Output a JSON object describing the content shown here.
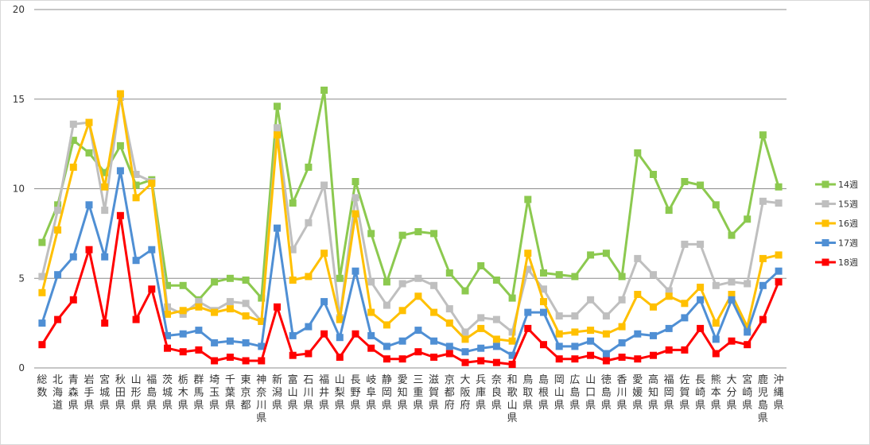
{
  "chart_data": {
    "type": "line",
    "title": "",
    "xlabel": "",
    "ylabel": "",
    "ylim": [
      0,
      20
    ],
    "yticks": [
      0,
      5,
      10,
      15,
      20
    ],
    "grid": true,
    "legend_position": "right",
    "categories": [
      "総数",
      "北海道",
      "青森県",
      "岩手県",
      "宮城県",
      "秋田県",
      "山形県",
      "福島県",
      "茨城県",
      "栃木県",
      "群馬県",
      "埼玉県",
      "千葉県",
      "東京都",
      "神奈川県",
      "新潟県",
      "富山県",
      "石川県",
      "福井県",
      "山梨県",
      "長野県",
      "岐阜県",
      "静岡県",
      "愛知県",
      "三重県",
      "滋賀県",
      "京都府",
      "大阪府",
      "兵庫県",
      "奈良県",
      "和歌山県",
      "鳥取県",
      "島根県",
      "岡山県",
      "広島県",
      "山口県",
      "徳島県",
      "香川県",
      "愛媛県",
      "高知県",
      "福岡県",
      "佐賀県",
      "長崎県",
      "熊本県",
      "大分県",
      "宮崎県",
      "鹿児島県",
      "沖縄県"
    ],
    "series": [
      {
        "name": "14週",
        "color": "#8cc94f",
        "values": [
          7.0,
          9.1,
          12.7,
          12.0,
          10.9,
          12.4,
          10.2,
          10.5,
          4.6,
          4.6,
          3.8,
          4.8,
          5.0,
          4.9,
          3.9,
          14.6,
          9.2,
          11.2,
          15.5,
          5.0,
          10.4,
          7.5,
          4.8,
          7.4,
          7.6,
          7.5,
          5.3,
          4.3,
          5.7,
          4.9,
          3.9,
          9.4,
          5.3,
          5.2,
          5.1,
          6.3,
          6.4,
          5.1,
          12.0,
          10.8,
          8.8,
          10.4,
          10.2,
          9.1,
          7.4,
          8.3,
          13.0,
          10.1
        ]
      },
      {
        "name": "15週",
        "color": "#bfbfbf",
        "values": [
          5.1,
          8.8,
          13.6,
          13.7,
          8.8,
          15.1,
          10.8,
          10.4,
          3.4,
          3.0,
          3.7,
          3.2,
          3.7,
          3.6,
          2.6,
          13.4,
          6.6,
          8.1,
          10.2,
          2.8,
          9.5,
          4.8,
          3.5,
          4.7,
          5.0,
          4.6,
          3.3,
          2.0,
          2.8,
          2.7,
          2.0,
          5.5,
          4.4,
          2.9,
          2.9,
          3.8,
          2.9,
          3.8,
          6.1,
          5.2,
          4.3,
          6.9,
          6.9,
          4.6,
          4.8,
          4.7,
          9.3,
          9.2
        ]
      },
      {
        "name": "16週",
        "color": "#ffc000",
        "values": [
          4.2,
          7.7,
          11.2,
          13.7,
          10.1,
          15.3,
          9.5,
          10.3,
          3.0,
          3.2,
          3.4,
          3.1,
          3.3,
          2.9,
          2.6,
          13.0,
          4.9,
          5.1,
          6.4,
          2.7,
          8.6,
          3.1,
          2.4,
          3.2,
          4.0,
          3.1,
          2.5,
          1.6,
          2.2,
          1.6,
          1.5,
          6.4,
          3.7,
          1.9,
          2.0,
          2.1,
          1.9,
          2.3,
          4.1,
          3.4,
          4.0,
          3.6,
          4.5,
          2.5,
          4.1,
          2.3,
          6.1,
          6.3
        ]
      },
      {
        "name": "17週",
        "color": "#4f8fd4",
        "values": [
          2.5,
          5.2,
          6.2,
          9.1,
          6.2,
          11.0,
          6.0,
          6.6,
          1.8,
          1.9,
          2.1,
          1.4,
          1.5,
          1.4,
          1.2,
          7.8,
          1.8,
          2.3,
          3.7,
          1.7,
          5.4,
          1.8,
          1.2,
          1.5,
          2.1,
          1.5,
          1.2,
          0.9,
          1.1,
          1.2,
          0.7,
          3.1,
          3.1,
          1.2,
          1.2,
          1.5,
          0.8,
          1.4,
          1.9,
          1.8,
          2.2,
          2.8,
          3.8,
          1.6,
          3.8,
          2.0,
          4.6,
          5.4
        ]
      },
      {
        "name": "18週",
        "color": "#ff0000",
        "values": [
          1.3,
          2.7,
          3.8,
          6.6,
          2.5,
          8.5,
          2.7,
          4.4,
          1.1,
          0.9,
          1.0,
          0.4,
          0.6,
          0.4,
          0.4,
          3.4,
          0.7,
          0.8,
          1.9,
          0.6,
          1.9,
          1.1,
          0.5,
          0.5,
          0.9,
          0.6,
          0.8,
          0.3,
          0.4,
          0.3,
          0.2,
          2.2,
          1.3,
          0.5,
          0.5,
          0.7,
          0.4,
          0.6,
          0.5,
          0.7,
          1.0,
          1.0,
          2.2,
          0.8,
          1.5,
          1.3,
          2.7,
          4.8
        ]
      }
    ]
  }
}
